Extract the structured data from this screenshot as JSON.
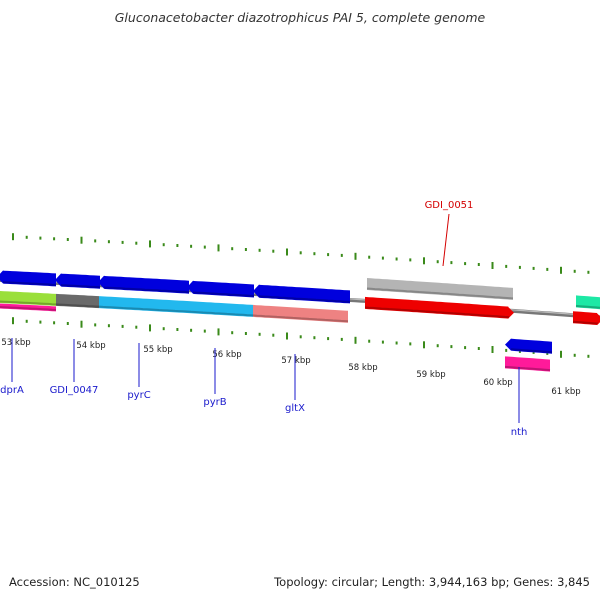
{
  "title": "Gluconacetobacter diazotrophicus PAI 5, complete genome",
  "footer": {
    "accession": "Accession: NC_010125",
    "topology": "Topology: circular; Length: 3,944,163 bp; Genes: 3,845"
  },
  "colors": {
    "backbone": "#777777",
    "tick": "#3a8a1a",
    "gene_label": "#1a1acc",
    "highlight_label": "#d40000"
  },
  "scale_labels": [
    "53 kbp",
    "54 kbp",
    "55 kbp",
    "56 kbp",
    "57 kbp",
    "58 kbp",
    "59 kbp",
    "60 kbp",
    "61 kbp"
  ],
  "features": [
    {
      "track": "strand-reverse",
      "strand": "-",
      "color": "#0000dd",
      "x0": 0,
      "x1": 56
    },
    {
      "track": "strand-reverse",
      "strand": "-",
      "color": "#0000dd",
      "x0": 58,
      "x1": 100
    },
    {
      "track": "strand-reverse",
      "strand": "-",
      "color": "#0000dd",
      "x0": 101,
      "x1": 189
    },
    {
      "track": "strand-reverse",
      "strand": "-",
      "color": "#0000dd",
      "x0": 190,
      "x1": 254
    },
    {
      "track": "strand-reverse",
      "strand": "-",
      "color": "#0000dd",
      "x0": 256,
      "x1": 350
    },
    {
      "track": "category",
      "strand": "none",
      "color": "#9adf3a",
      "x0": 0,
      "x1": 56
    },
    {
      "track": "category",
      "strand": "none",
      "color": "#6a6a6a",
      "x0": 56,
      "x1": 99
    },
    {
      "track": "category",
      "strand": "none",
      "color": "#22b8ee",
      "x0": 99,
      "x1": 253
    },
    {
      "track": "category",
      "strand": "none",
      "color": "#ee8282",
      "x0": 253,
      "x1": 348
    },
    {
      "track": "category-lower",
      "strand": "none",
      "color": "#ff1a9a",
      "x0": 0,
      "x1": 56
    },
    {
      "track": "outer-gray",
      "strand": "none",
      "color": "#b4b4b4",
      "x0": 367,
      "x1": 513
    },
    {
      "track": "strand-forward",
      "strand": "+",
      "color": "#ee0000",
      "x0": 365,
      "x1": 511
    },
    {
      "track": "outer-green",
      "strand": "none",
      "color": "#1de8a5",
      "x0": 576,
      "x1": 600
    },
    {
      "track": "strand-forward",
      "strand": "+",
      "color": "#ee0000",
      "x0": 573,
      "x1": 600
    },
    {
      "track": "inner-reverse",
      "strand": "-",
      "color": "#0000dd",
      "x0": 508,
      "x1": 552
    },
    {
      "track": "inner-category",
      "strand": "none",
      "color": "#ff1a9a",
      "x0": 505,
      "x1": 550
    }
  ],
  "gene_labels": [
    {
      "text": "dprA",
      "side": "inner"
    },
    {
      "text": "GDI_0047",
      "side": "inner"
    },
    {
      "text": "pyrC",
      "side": "inner"
    },
    {
      "text": "pyrB",
      "side": "inner"
    },
    {
      "text": "gltX",
      "side": "inner"
    },
    {
      "text": "nth",
      "side": "inner"
    },
    {
      "text": "GDI_0051",
      "side": "outer"
    }
  ]
}
